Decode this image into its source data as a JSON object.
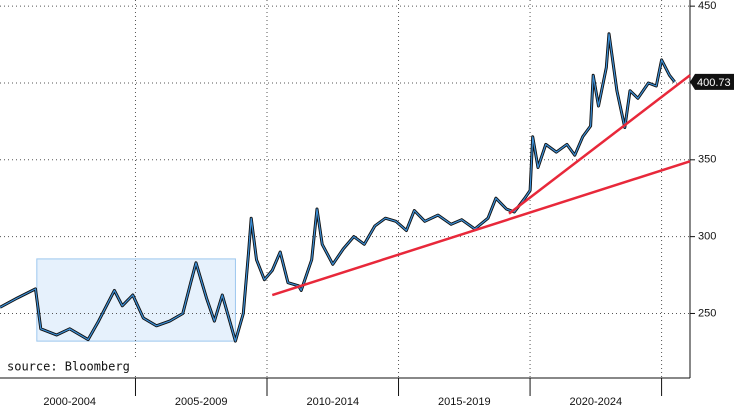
{
  "chart_data": {
    "type": "line",
    "source": "source: Bloomberg",
    "xlim": [
      1999.85,
      2026.08
    ],
    "ylim": [
      208,
      454
    ],
    "yticks": [
      250,
      300,
      350,
      400,
      450
    ],
    "grid": true,
    "periods": [
      {
        "label": "2000-2004",
        "start": 2000,
        "end": 2005
      },
      {
        "label": "2005-2009",
        "start": 2005,
        "end": 2010
      },
      {
        "label": "2010-2014",
        "start": 2010,
        "end": 2015
      },
      {
        "label": "2015-2019",
        "start": 2015,
        "end": 2020
      },
      {
        "label": "2020-2024",
        "start": 2020,
        "end": 2025
      }
    ],
    "series": [
      {
        "color": "#3c8fd6",
        "x": [
          1999.85,
          2000.5,
          2001.2,
          2001.4,
          2002,
          2002.5,
          2003.2,
          2003.6,
          2004.2,
          2004.5,
          2004.9,
          2005.3,
          2005.8,
          2006.3,
          2006.8,
          2007.1,
          2007.3,
          2007.7,
          2008.0,
          2008.3,
          2008.6,
          2008.8,
          2009.1,
          2009.3,
          2009.4,
          2009.6,
          2009.9,
          2010.2,
          2010.5,
          2010.8,
          2011.2,
          2011.3,
          2011.7,
          2011.9,
          2012.1,
          2012.5,
          2012.9,
          2013.3,
          2013.7,
          2014.1,
          2014.5,
          2014.9,
          2015.3,
          2015.6,
          2016,
          2016.5,
          2017,
          2017.4,
          2017.9,
          2018.4,
          2018.7,
          2019.1,
          2019.4,
          2019.8,
          2020.0,
          2020.1,
          2020.3,
          2020.6,
          2021.0,
          2021.4,
          2021.7,
          2022.0,
          2022.3,
          2022.4,
          2022.6,
          2022.9,
          2023.0,
          2023.3,
          2023.6,
          2023.8,
          2024.1,
          2024.5,
          2024.8,
          2025.0,
          2025.3,
          2025.5
        ],
        "values": [
          254,
          260,
          266,
          240,
          236,
          240,
          233,
          245,
          265,
          255,
          262,
          247,
          242,
          245,
          250,
          270,
          283,
          260,
          245,
          262,
          244,
          232,
          250,
          290,
          312,
          285,
          272,
          278,
          290,
          270,
          268,
          265,
          285,
          318,
          295,
          282,
          292,
          300,
          295,
          307,
          312,
          310,
          304,
          317,
          310,
          314,
          308,
          311,
          305,
          312,
          325,
          318,
          316,
          325,
          330,
          365,
          345,
          360,
          355,
          360,
          353,
          365,
          372,
          405,
          385,
          410,
          432,
          395,
          371,
          395,
          390,
          400,
          398,
          415,
          405,
          400.73
        ]
      }
    ],
    "last_value": {
      "value": 400.73,
      "label": "400.73"
    },
    "highlight": {
      "x": [
        2001.25,
        2008.8
      ],
      "y": [
        232,
        285.5
      ]
    },
    "trend_color": "#e8283a",
    "trend_lines": [
      {
        "x": [
          2010.2,
          2026.08
        ],
        "y": [
          262,
          349
        ]
      },
      {
        "x": [
          2019.2,
          2026.08
        ],
        "y": [
          315,
          405
        ]
      }
    ]
  }
}
